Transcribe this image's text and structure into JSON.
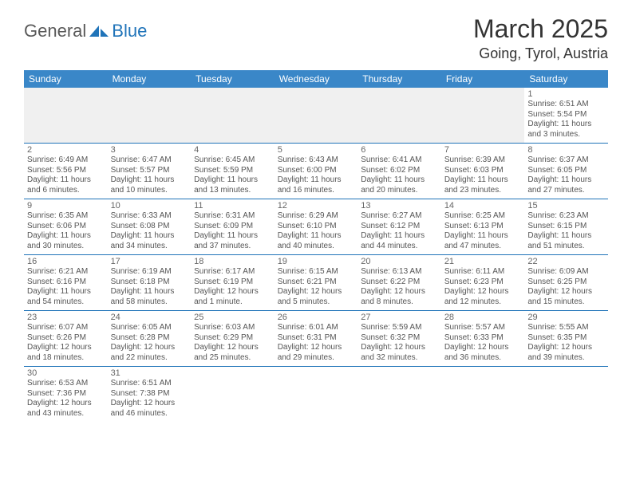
{
  "logo": {
    "general": "General",
    "blue": "Blue"
  },
  "header": {
    "month": "March 2025",
    "location": "Going, Tyrol, Austria"
  },
  "dayNames": [
    "Sunday",
    "Monday",
    "Tuesday",
    "Wednesday",
    "Thursday",
    "Friday",
    "Saturday"
  ],
  "colors": {
    "headerBg": "#3a87c8",
    "border": "#2074b9",
    "logoBlue": "#2074b9",
    "text": "#555"
  },
  "weeks": [
    [
      null,
      null,
      null,
      null,
      null,
      null,
      {
        "n": "1",
        "sr": "6:51 AM",
        "ss": "5:54 PM",
        "dl": "11 hours and 3 minutes."
      }
    ],
    [
      {
        "n": "2",
        "sr": "6:49 AM",
        "ss": "5:56 PM",
        "dl": "11 hours and 6 minutes."
      },
      {
        "n": "3",
        "sr": "6:47 AM",
        "ss": "5:57 PM",
        "dl": "11 hours and 10 minutes."
      },
      {
        "n": "4",
        "sr": "6:45 AM",
        "ss": "5:59 PM",
        "dl": "11 hours and 13 minutes."
      },
      {
        "n": "5",
        "sr": "6:43 AM",
        "ss": "6:00 PM",
        "dl": "11 hours and 16 minutes."
      },
      {
        "n": "6",
        "sr": "6:41 AM",
        "ss": "6:02 PM",
        "dl": "11 hours and 20 minutes."
      },
      {
        "n": "7",
        "sr": "6:39 AM",
        "ss": "6:03 PM",
        "dl": "11 hours and 23 minutes."
      },
      {
        "n": "8",
        "sr": "6:37 AM",
        "ss": "6:05 PM",
        "dl": "11 hours and 27 minutes."
      }
    ],
    [
      {
        "n": "9",
        "sr": "6:35 AM",
        "ss": "6:06 PM",
        "dl": "11 hours and 30 minutes."
      },
      {
        "n": "10",
        "sr": "6:33 AM",
        "ss": "6:08 PM",
        "dl": "11 hours and 34 minutes."
      },
      {
        "n": "11",
        "sr": "6:31 AM",
        "ss": "6:09 PM",
        "dl": "11 hours and 37 minutes."
      },
      {
        "n": "12",
        "sr": "6:29 AM",
        "ss": "6:10 PM",
        "dl": "11 hours and 40 minutes."
      },
      {
        "n": "13",
        "sr": "6:27 AM",
        "ss": "6:12 PM",
        "dl": "11 hours and 44 minutes."
      },
      {
        "n": "14",
        "sr": "6:25 AM",
        "ss": "6:13 PM",
        "dl": "11 hours and 47 minutes."
      },
      {
        "n": "15",
        "sr": "6:23 AM",
        "ss": "6:15 PM",
        "dl": "11 hours and 51 minutes."
      }
    ],
    [
      {
        "n": "16",
        "sr": "6:21 AM",
        "ss": "6:16 PM",
        "dl": "11 hours and 54 minutes."
      },
      {
        "n": "17",
        "sr": "6:19 AM",
        "ss": "6:18 PM",
        "dl": "11 hours and 58 minutes."
      },
      {
        "n": "18",
        "sr": "6:17 AM",
        "ss": "6:19 PM",
        "dl": "12 hours and 1 minute."
      },
      {
        "n": "19",
        "sr": "6:15 AM",
        "ss": "6:21 PM",
        "dl": "12 hours and 5 minutes."
      },
      {
        "n": "20",
        "sr": "6:13 AM",
        "ss": "6:22 PM",
        "dl": "12 hours and 8 minutes."
      },
      {
        "n": "21",
        "sr": "6:11 AM",
        "ss": "6:23 PM",
        "dl": "12 hours and 12 minutes."
      },
      {
        "n": "22",
        "sr": "6:09 AM",
        "ss": "6:25 PM",
        "dl": "12 hours and 15 minutes."
      }
    ],
    [
      {
        "n": "23",
        "sr": "6:07 AM",
        "ss": "6:26 PM",
        "dl": "12 hours and 18 minutes."
      },
      {
        "n": "24",
        "sr": "6:05 AM",
        "ss": "6:28 PM",
        "dl": "12 hours and 22 minutes."
      },
      {
        "n": "25",
        "sr": "6:03 AM",
        "ss": "6:29 PM",
        "dl": "12 hours and 25 minutes."
      },
      {
        "n": "26",
        "sr": "6:01 AM",
        "ss": "6:31 PM",
        "dl": "12 hours and 29 minutes."
      },
      {
        "n": "27",
        "sr": "5:59 AM",
        "ss": "6:32 PM",
        "dl": "12 hours and 32 minutes."
      },
      {
        "n": "28",
        "sr": "5:57 AM",
        "ss": "6:33 PM",
        "dl": "12 hours and 36 minutes."
      },
      {
        "n": "29",
        "sr": "5:55 AM",
        "ss": "6:35 PM",
        "dl": "12 hours and 39 minutes."
      }
    ],
    [
      {
        "n": "30",
        "sr": "6:53 AM",
        "ss": "7:36 PM",
        "dl": "12 hours and 43 minutes."
      },
      {
        "n": "31",
        "sr": "6:51 AM",
        "ss": "7:38 PM",
        "dl": "12 hours and 46 minutes."
      },
      null,
      null,
      null,
      null,
      null
    ]
  ],
  "labels": {
    "sunrise": "Sunrise:",
    "sunset": "Sunset:",
    "daylight": "Daylight:"
  }
}
